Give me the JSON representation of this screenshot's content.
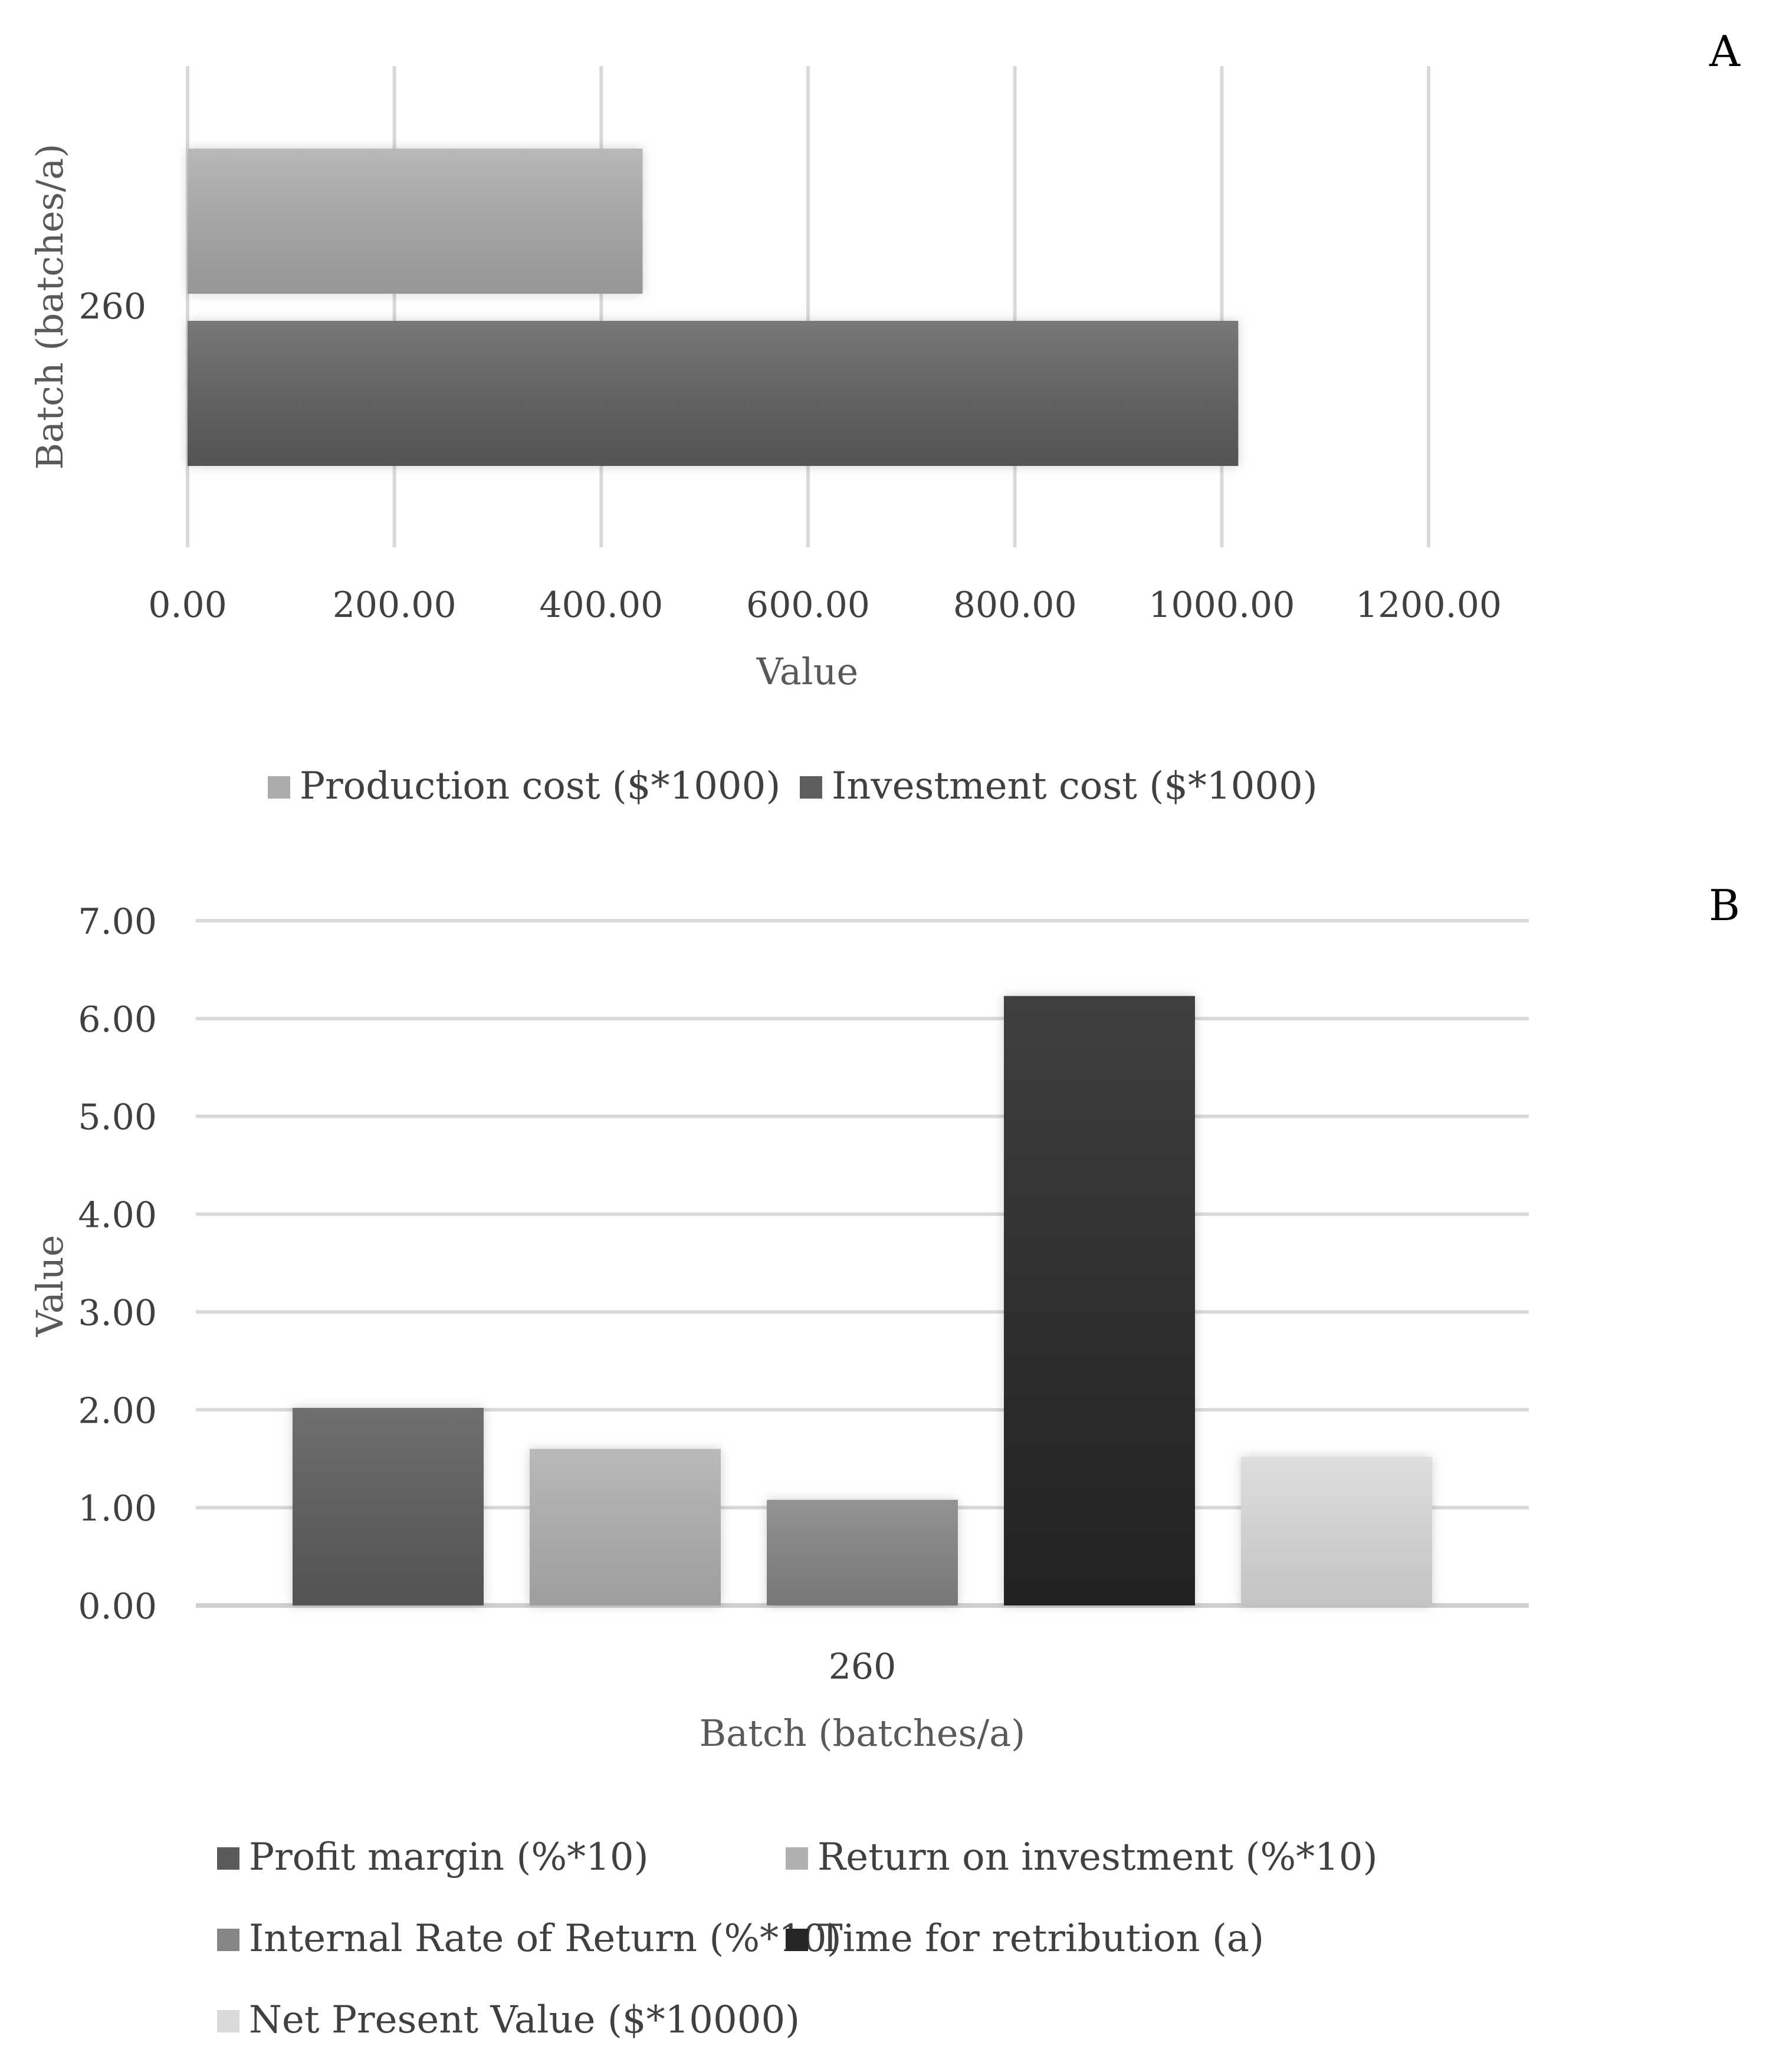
{
  "chart_data": [
    {
      "panel": "A",
      "type": "bar",
      "orientation": "horizontal",
      "categories": [
        "260"
      ],
      "series": [
        {
          "name": "Production cost ($*1000)",
          "values": [
            440
          ],
          "color": "#ababab"
        },
        {
          "name": "Investment cost ($*1000)",
          "values": [
            1016
          ],
          "color": "#5e5e5e"
        }
      ],
      "xlabel": "Value",
      "ylabel": "Batch (batches/a)",
      "xlim": [
        0,
        1200
      ],
      "xticks": [
        "0.00",
        "200.00",
        "400.00",
        "600.00",
        "800.00",
        "1000.00",
        "1200.00"
      ],
      "grid": "vertical",
      "legend": "bottom"
    },
    {
      "panel": "B",
      "type": "bar",
      "orientation": "vertical",
      "categories": [
        "260"
      ],
      "series": [
        {
          "name": "Profit margin (%*10)",
          "values": [
            2.02
          ],
          "color": "#5b5b5b"
        },
        {
          "name": "Return on investment  (%*10)",
          "values": [
            1.6
          ],
          "color": "#b0b0b0"
        },
        {
          "name": "Internal Rate of Return (%*10)",
          "values": [
            1.08
          ],
          "color": "#858585"
        },
        {
          "name": "Time for retribution (a)",
          "values": [
            6.23
          ],
          "color": "#262626"
        },
        {
          "name": "Net Present Value ($*10000)",
          "values": [
            1.52
          ],
          "color": "#dadada"
        }
      ],
      "xlabel": "Batch (batches/a)",
      "ylabel": "Value",
      "ylim": [
        0,
        7
      ],
      "yticks": [
        "0.00",
        "1.00",
        "2.00",
        "3.00",
        "4.00",
        "5.00",
        "6.00",
        "7.00"
      ],
      "grid": "horizontal",
      "legend": "bottom"
    }
  ]
}
